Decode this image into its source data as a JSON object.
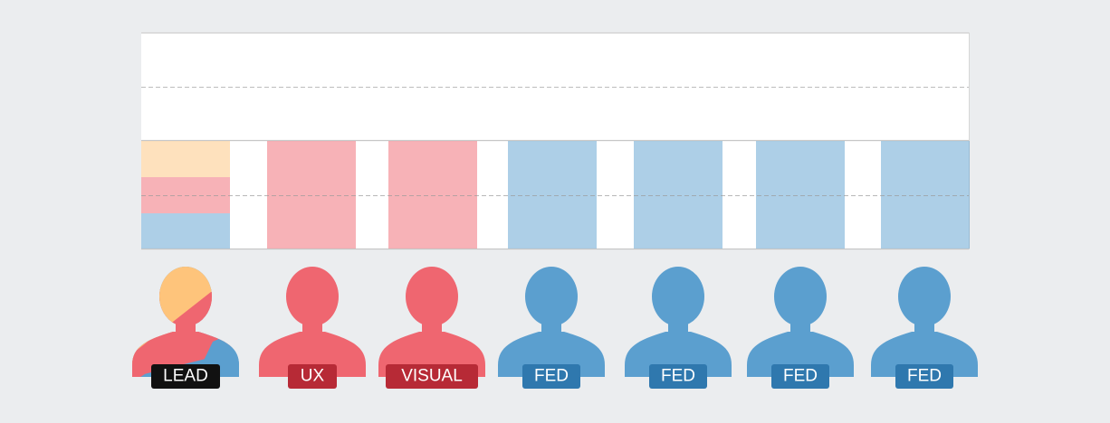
{
  "colors": {
    "background": "#ebedef",
    "panel": "#ffffff",
    "gridline": "#bdbdbd",
    "lead_yellow": "#fec47b",
    "ux_red": "#ef6670",
    "fed_blue": "#5b9fcf",
    "lead_badge": "#111111",
    "red_badge": "#b72a36",
    "blue_badge": "#2f78ae"
  },
  "roles": [
    {
      "id": "lead",
      "label": "LEAD",
      "kind": "lead",
      "badge_color": "#111111",
      "bar_segments": [
        {
          "role": "design",
          "color": "#fec47b",
          "share": 0.333
        },
        {
          "role": "ux",
          "color": "#ef6670",
          "share": 0.333
        },
        {
          "role": "fed",
          "color": "#5b9fcf",
          "share": 0.334
        }
      ]
    },
    {
      "id": "ux",
      "label": "UX",
      "kind": "red",
      "badge_color": "#b72a36",
      "bar_segments": [
        {
          "role": "ux",
          "color": "#ef6670",
          "share": 1
        }
      ]
    },
    {
      "id": "visual",
      "label": "VISUAL",
      "kind": "red",
      "badge_color": "#b72a36",
      "bar_segments": [
        {
          "role": "visual",
          "color": "#ef6670",
          "share": 1
        }
      ]
    },
    {
      "id": "fed-1",
      "label": "FED",
      "kind": "blue",
      "badge_color": "#2f78ae",
      "bar_segments": [
        {
          "role": "fed",
          "color": "#5b9fcf",
          "share": 1
        }
      ]
    },
    {
      "id": "fed-2",
      "label": "FED",
      "kind": "blue",
      "badge_color": "#2f78ae",
      "bar_segments": [
        {
          "role": "fed",
          "color": "#5b9fcf",
          "share": 1
        }
      ]
    },
    {
      "id": "fed-3",
      "label": "FED",
      "kind": "blue",
      "badge_color": "#2f78ae",
      "bar_segments": [
        {
          "role": "fed",
          "color": "#5b9fcf",
          "share": 1
        }
      ]
    },
    {
      "id": "fed-4",
      "label": "FED",
      "kind": "blue",
      "badge_color": "#2f78ae",
      "bar_segments": [
        {
          "role": "fed",
          "color": "#5b9fcf",
          "share": 1
        }
      ]
    }
  ]
}
